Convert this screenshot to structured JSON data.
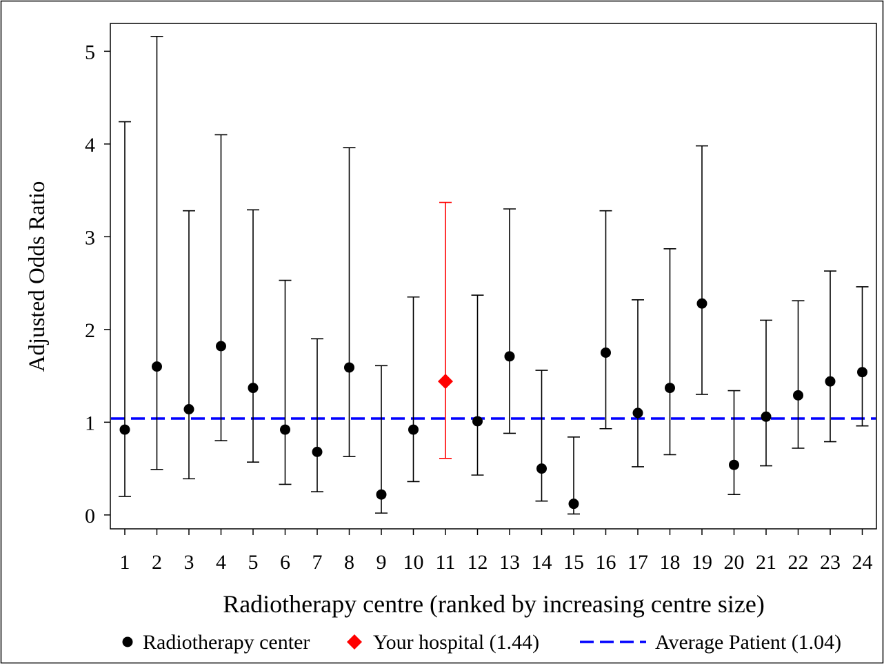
{
  "chart_data": {
    "type": "scatter",
    "xlabel": "Radiotherapy centre (ranked by increasing centre size)",
    "ylabel": "Adjusted Odds Ratio",
    "ylim": [
      -0.15,
      5.3
    ],
    "yticks": [
      0,
      1,
      2,
      3,
      4,
      5
    ],
    "categories": [
      "1",
      "2",
      "3",
      "4",
      "5",
      "6",
      "7",
      "8",
      "9",
      "10",
      "11",
      "12",
      "13",
      "14",
      "15",
      "16",
      "17",
      "18",
      "19",
      "20",
      "21",
      "22",
      "23",
      "24"
    ],
    "legend_position": "bottom",
    "grid": false,
    "series": [
      {
        "name": "Radiotherapy center",
        "color": "#000000",
        "marker": "circle",
        "points": [
          {
            "x": 1,
            "y": 0.92,
            "lower": 0.2,
            "upper": 4.24
          },
          {
            "x": 2,
            "y": 1.6,
            "lower": 0.49,
            "upper": 5.16
          },
          {
            "x": 3,
            "y": 1.14,
            "lower": 0.39,
            "upper": 3.28
          },
          {
            "x": 4,
            "y": 1.82,
            "lower": 0.8,
            "upper": 4.1
          },
          {
            "x": 5,
            "y": 1.37,
            "lower": 0.57,
            "upper": 3.29
          },
          {
            "x": 6,
            "y": 0.92,
            "lower": 0.33,
            "upper": 2.53
          },
          {
            "x": 7,
            "y": 0.68,
            "lower": 0.25,
            "upper": 1.9
          },
          {
            "x": 8,
            "y": 1.59,
            "lower": 0.63,
            "upper": 3.96
          },
          {
            "x": 9,
            "y": 0.22,
            "lower": 0.02,
            "upper": 1.61
          },
          {
            "x": 10,
            "y": 0.92,
            "lower": 0.36,
            "upper": 2.35
          },
          {
            "x": 12,
            "y": 1.01,
            "lower": 0.43,
            "upper": 2.37
          },
          {
            "x": 13,
            "y": 1.71,
            "lower": 0.88,
            "upper": 3.3
          },
          {
            "x": 14,
            "y": 0.5,
            "lower": 0.15,
            "upper": 1.56
          },
          {
            "x": 15,
            "y": 0.12,
            "lower": 0.01,
            "upper": 0.84
          },
          {
            "x": 16,
            "y": 1.75,
            "lower": 0.93,
            "upper": 3.28
          },
          {
            "x": 17,
            "y": 1.1,
            "lower": 0.52,
            "upper": 2.32
          },
          {
            "x": 18,
            "y": 1.37,
            "lower": 0.65,
            "upper": 2.87
          },
          {
            "x": 19,
            "y": 2.28,
            "lower": 1.3,
            "upper": 3.98
          },
          {
            "x": 20,
            "y": 0.54,
            "lower": 0.22,
            "upper": 1.34
          },
          {
            "x": 21,
            "y": 1.06,
            "lower": 0.53,
            "upper": 2.1
          },
          {
            "x": 22,
            "y": 1.29,
            "lower": 0.72,
            "upper": 2.31
          },
          {
            "x": 23,
            "y": 1.44,
            "lower": 0.79,
            "upper": 2.63
          },
          {
            "x": 24,
            "y": 1.54,
            "lower": 0.96,
            "upper": 2.46
          }
        ]
      },
      {
        "name": "Your hospital (1.44)",
        "color": "#ff0000",
        "marker": "diamond",
        "points": [
          {
            "x": 11,
            "y": 1.44,
            "lower": 0.61,
            "upper": 3.37
          }
        ]
      }
    ],
    "reference_line": {
      "name": "Average Patient (1.04)",
      "y": 1.04,
      "color": "#0000ff",
      "style": "dashed"
    }
  }
}
